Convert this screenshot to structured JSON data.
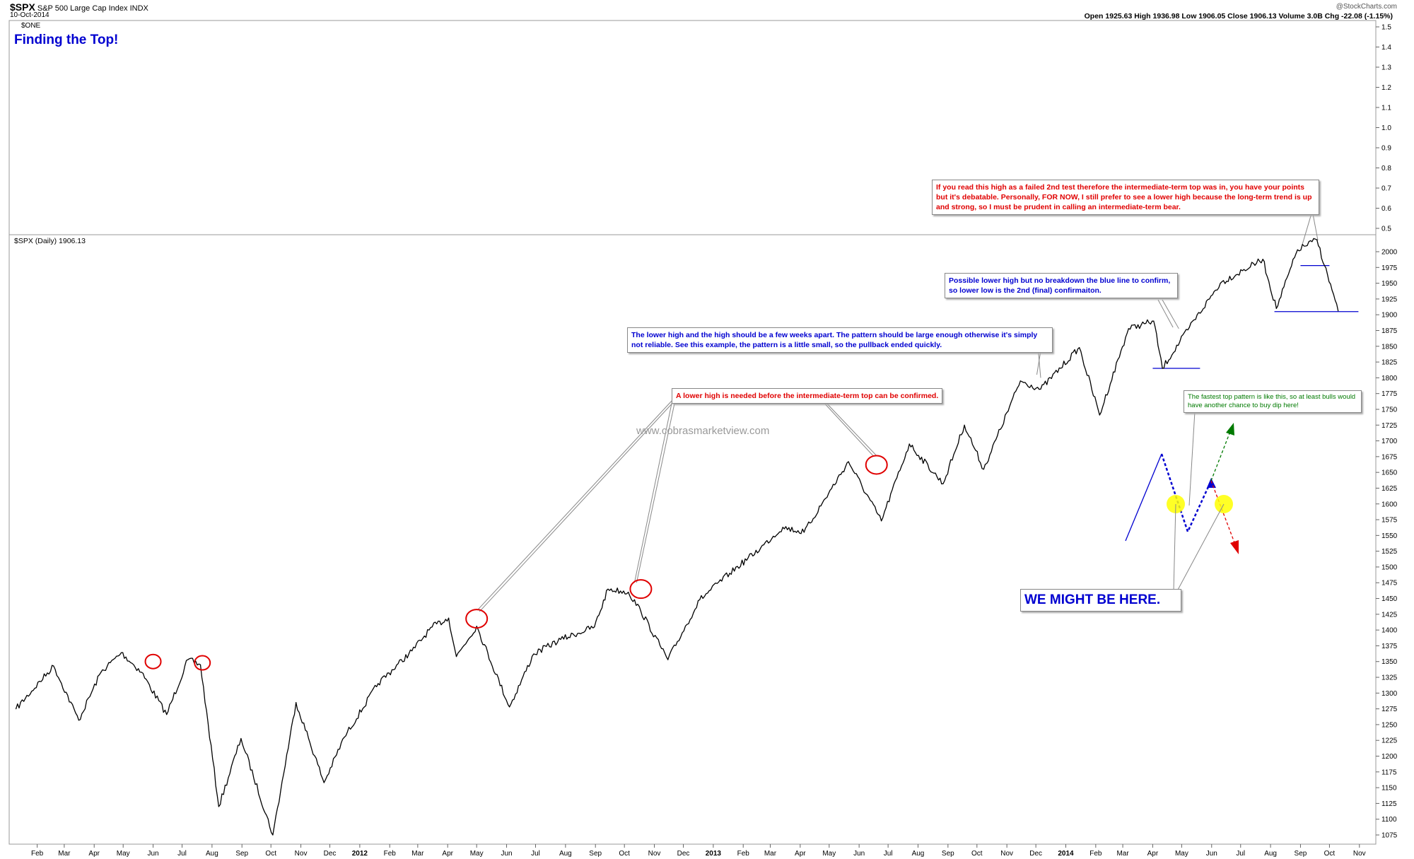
{
  "header": {
    "symbol": "$SPX",
    "name": "S&P 500 Large Cap Index",
    "exchange": "INDX",
    "date": "10-Oct-2014",
    "watermark": "@StockCharts.com",
    "ohlc_line": "Open 1925.63  High 1936.98  Low 1906.05  Close 1906.13  Volume 3.0B  Chg -22.08 (-1.15%)",
    "top_panel_label": "$ONE",
    "title": "Finding the Top!",
    "price_panel_label": "$SPX (Daily) 1906.13",
    "site": "www.cobrasmarketview.com"
  },
  "annotations": {
    "top_note": "If you read this high as a failed 2nd test therefore the intermediate-term top was in, you have your points but it's debatable. Personally, FOR NOW, I still prefer to see a lower high because the long-term trend is up and strong, so I must be prudent in calling an intermediate-term bear.",
    "possible_lower_high": "Possible lower high but no breakdown the blue line to confirm, so lower low is the 2nd (final) confirmaiton.",
    "weeks_apart": "The lower high and the high should be a few weeks apart. The pattern should be large enough otherwise it's simply not reliable. See this example, the pattern is a little small, so the pullback ended quickly.",
    "lower_high_needed": "A lower high is needed before the intermediate-term top can be confirmed.",
    "fastest_pattern": "The fastest top pattern is like this, so at least bulls would have another chance to buy dip here!",
    "we_might_be_here": "WE MIGHT BE HERE."
  },
  "colors": {
    "price": "#000000",
    "grid": "#cccccc",
    "marker_circle": "#e00000",
    "support_line": "#0000d0",
    "highlight": "#ffff00",
    "arrow_up": "#007a00",
    "arrow_down": "#e00000"
  },
  "chart_data": {
    "type": "line",
    "title": "Finding the Top!",
    "series": [
      {
        "name": "$SPX (Daily)",
        "x": [
          "2011-01-10",
          "2011-02-18",
          "2011-03-16",
          "2011-04-08",
          "2011-04-29",
          "2011-05-20",
          "2011-06-15",
          "2011-07-07",
          "2011-07-20",
          "2011-08-08",
          "2011-08-31",
          "2011-10-03",
          "2011-10-27",
          "2011-11-25",
          "2011-12-16",
          "2012-01-20",
          "2012-02-24",
          "2012-03-16",
          "2012-04-02",
          "2012-04-10",
          "2012-05-01",
          "2012-06-04",
          "2012-06-29",
          "2012-07-27",
          "2012-08-31",
          "2012-09-14",
          "2012-10-05",
          "2012-10-18",
          "2012-11-15",
          "2012-12-18",
          "2013-01-18",
          "2013-02-19",
          "2013-03-14",
          "2013-04-05",
          "2013-05-21",
          "2013-06-24",
          "2013-07-23",
          "2013-08-27",
          "2013-09-18",
          "2013-10-08",
          "2013-11-15",
          "2013-12-06",
          "2014-01-15",
          "2014-02-05",
          "2014-03-07",
          "2014-04-02",
          "2014-04-11",
          "2014-05-09",
          "2014-06-10",
          "2014-07-24",
          "2014-08-07",
          "2014-08-29",
          "2014-09-18",
          "2014-10-10"
        ],
        "y": [
          1275,
          1343,
          1257,
          1333,
          1364,
          1333,
          1266,
          1353,
          1345,
          1120,
          1228,
          1075,
          1285,
          1158,
          1230,
          1315,
          1367,
          1405,
          1419,
          1358,
          1406,
          1278,
          1362,
          1385,
          1405,
          1465,
          1460,
          1430,
          1353,
          1448,
          1490,
          1530,
          1563,
          1555,
          1667,
          1573,
          1695,
          1632,
          1725,
          1655,
          1795,
          1782,
          1848,
          1741,
          1878,
          1890,
          1815,
          1880,
          1950,
          1988,
          1910,
          2003,
          2019,
          1906
        ]
      }
    ],
    "ylim": [
      1075,
      2000
    ],
    "yticks": [
      1075,
      1100,
      1125,
      1150,
      1175,
      1200,
      1225,
      1250,
      1275,
      1300,
      1325,
      1350,
      1375,
      1400,
      1425,
      1450,
      1475,
      1500,
      1525,
      1550,
      1575,
      1600,
      1625,
      1650,
      1675,
      1700,
      1725,
      1750,
      1775,
      1800,
      1825,
      1850,
      1875,
      1900,
      1925,
      1950,
      1975,
      2000
    ],
    "top_panel_yticks": [
      "0.5",
      "0.6",
      "0.7",
      "0.8",
      "0.9",
      "1.0",
      "1.1",
      "1.2",
      "1.3",
      "1.4",
      "1.5"
    ],
    "xticks": [
      {
        "label": "Feb",
        "date": "2011-02-01"
      },
      {
        "label": "Mar",
        "date": "2011-03-01"
      },
      {
        "label": "Apr",
        "date": "2011-04-01"
      },
      {
        "label": "May",
        "date": "2011-05-01"
      },
      {
        "label": "Jun",
        "date": "2011-06-01"
      },
      {
        "label": "Jul",
        "date": "2011-07-01"
      },
      {
        "label": "Aug",
        "date": "2011-08-01"
      },
      {
        "label": "Sep",
        "date": "2011-09-01"
      },
      {
        "label": "Oct",
        "date": "2011-10-01"
      },
      {
        "label": "Nov",
        "date": "2011-11-01"
      },
      {
        "label": "Dec",
        "date": "2011-12-01"
      },
      {
        "label": "2012",
        "date": "2012-01-01"
      },
      {
        "label": "Feb",
        "date": "2012-02-01"
      },
      {
        "label": "Mar",
        "date": "2012-03-01"
      },
      {
        "label": "Apr",
        "date": "2012-04-01"
      },
      {
        "label": "May",
        "date": "2012-05-01"
      },
      {
        "label": "Jun",
        "date": "2012-06-01"
      },
      {
        "label": "Jul",
        "date": "2012-07-01"
      },
      {
        "label": "Aug",
        "date": "2012-08-01"
      },
      {
        "label": "Sep",
        "date": "2012-09-01"
      },
      {
        "label": "Oct",
        "date": "2012-10-01"
      },
      {
        "label": "Nov",
        "date": "2012-11-01"
      },
      {
        "label": "Dec",
        "date": "2012-12-01"
      },
      {
        "label": "2013",
        "date": "2013-01-01"
      },
      {
        "label": "Feb",
        "date": "2013-02-01"
      },
      {
        "label": "Mar",
        "date": "2013-03-01"
      },
      {
        "label": "Apr",
        "date": "2013-04-01"
      },
      {
        "label": "May",
        "date": "2013-05-01"
      },
      {
        "label": "Jun",
        "date": "2013-06-01"
      },
      {
        "label": "Jul",
        "date": "2013-07-01"
      },
      {
        "label": "Aug",
        "date": "2013-08-01"
      },
      {
        "label": "Sep",
        "date": "2013-09-01"
      },
      {
        "label": "Oct",
        "date": "2013-10-01"
      },
      {
        "label": "Nov",
        "date": "2013-11-01"
      },
      {
        "label": "Dec",
        "date": "2013-12-01"
      },
      {
        "label": "2014",
        "date": "2014-01-01"
      },
      {
        "label": "Feb",
        "date": "2014-02-01"
      },
      {
        "label": "Mar",
        "date": "2014-03-01"
      },
      {
        "label": "Apr",
        "date": "2014-04-01"
      },
      {
        "label": "May",
        "date": "2014-05-01"
      },
      {
        "label": "Jun",
        "date": "2014-06-01"
      },
      {
        "label": "Jul",
        "date": "2014-07-01"
      },
      {
        "label": "Aug",
        "date": "2014-08-01"
      },
      {
        "label": "Sep",
        "date": "2014-09-01"
      },
      {
        "label": "Oct",
        "date": "2014-10-01"
      },
      {
        "label": "Nov",
        "date": "2014-11-01"
      }
    ],
    "circled_points": [
      {
        "date": "2011-06-01",
        "value": 1350
      },
      {
        "date": "2011-07-22",
        "value": 1348
      },
      {
        "date": "2012-05-01",
        "value": 1418
      },
      {
        "date": "2012-10-18",
        "value": 1465
      },
      {
        "date": "2013-06-19",
        "value": 1662
      }
    ],
    "support_lines": [
      {
        "start": "2014-04-01",
        "end": "2014-05-20",
        "value": 1815
      },
      {
        "start": "2014-08-05",
        "end": "2014-10-31",
        "value": 1905
      },
      {
        "start": "2014-09-01",
        "end": "2014-10-01",
        "value": 1978
      }
    ],
    "grid": true,
    "legend": "top-left"
  }
}
